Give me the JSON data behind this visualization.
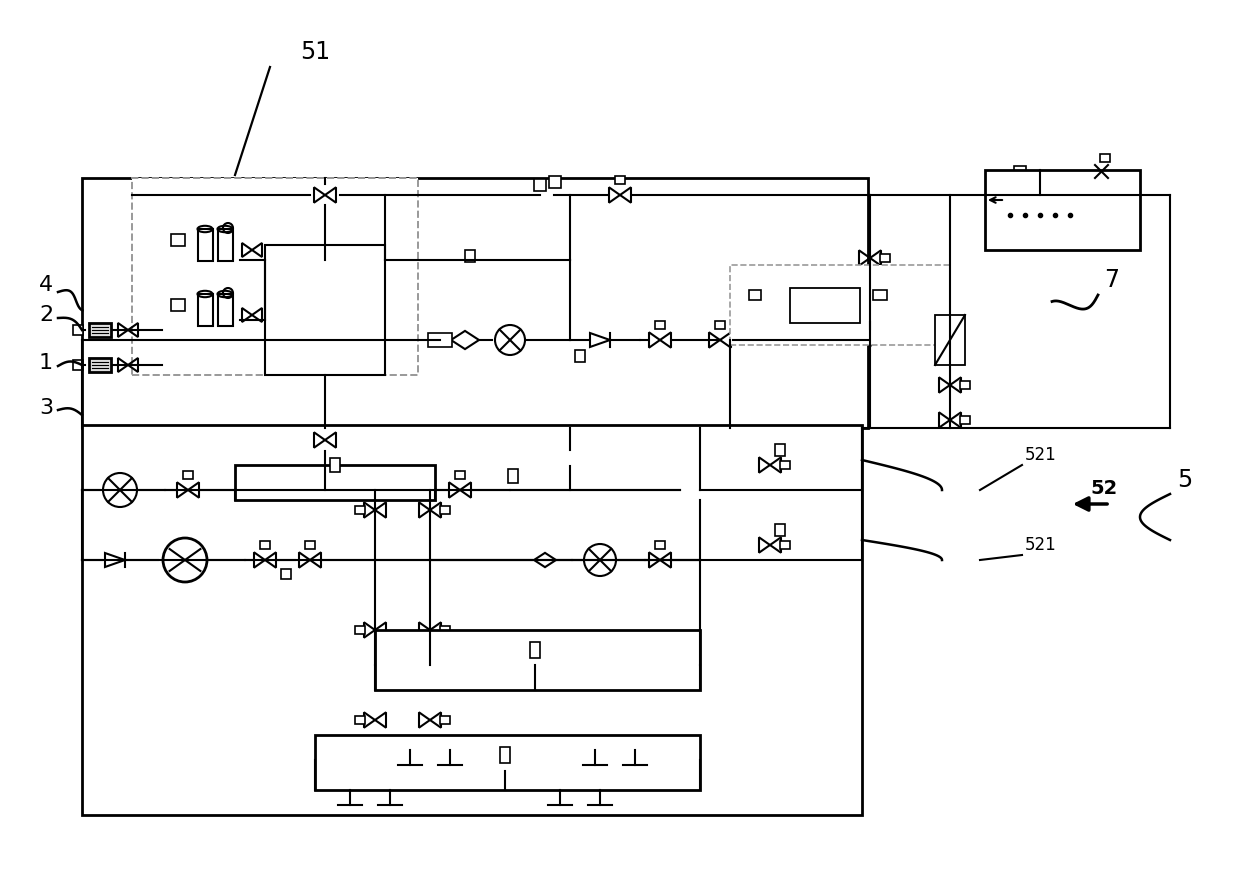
{
  "bg": "#ffffff",
  "lc": "#000000",
  "gray": "#999999",
  "lw": 1.5,
  "lw_thick": 2.0
}
